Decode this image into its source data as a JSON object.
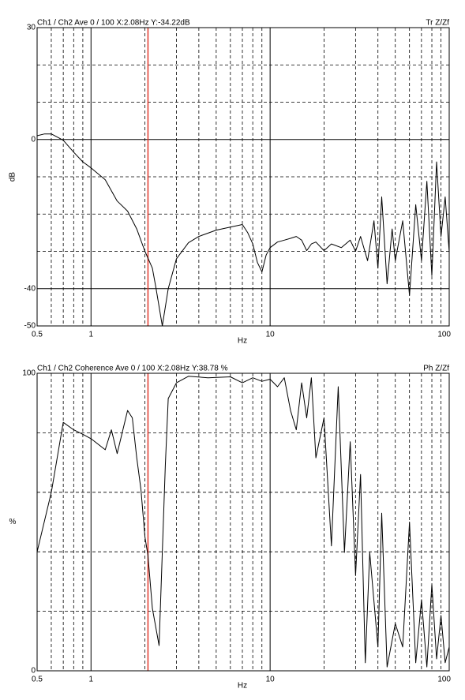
{
  "chart_data": [
    {
      "type": "line",
      "title": "Ch1 / Ch2  Ave 0 / 100  X:2.08Hz  Y:-34.22dB",
      "trace_label": "Tr Z/Zf",
      "x_label": "Hz",
      "y_label": "dB",
      "x_log": true,
      "xlim": [
        0.5,
        100
      ],
      "xticks": [
        0.5,
        1,
        10,
        100
      ],
      "minor_xticks": [
        0.6,
        0.7,
        0.8,
        0.9,
        2,
        3,
        4,
        5,
        6,
        7,
        8,
        9,
        20,
        30,
        40,
        50,
        60,
        70,
        80,
        90
      ],
      "ylim": [
        -50,
        30
      ],
      "yticks": [
        -50,
        -40,
        0,
        30
      ],
      "minor_yticks": [
        -30,
        -20,
        -10,
        10,
        20
      ],
      "cursor_x": 2.08,
      "cursor_color": "#e0392b",
      "grid": true,
      "x": [
        0.5,
        0.55,
        0.6,
        0.7,
        0.8,
        0.9,
        1.0,
        1.2,
        1.4,
        1.6,
        1.8,
        2.0,
        2.2,
        2.3,
        2.5,
        2.7,
        3.0,
        3.5,
        4,
        5,
        6,
        7,
        7.5,
        8,
        8.5,
        9,
        9.5,
        10,
        11,
        12,
        13,
        14,
        15,
        16,
        17,
        18,
        20,
        22,
        25,
        28,
        30,
        32,
        35,
        38,
        40,
        42,
        45,
        48,
        50,
        55,
        60,
        65,
        70,
        75,
        80,
        85,
        90,
        95,
        100
      ],
      "series": [
        {
          "name": "Tr Z/Zf",
          "color": "#000000",
          "values": [
            1,
            1.5,
            1.5,
            -0.2,
            -3.4,
            -6,
            -7.6,
            -10.8,
            -16.5,
            -19.2,
            -24,
            -30,
            -34.5,
            -39.5,
            -50,
            -40,
            -32,
            -27.7,
            -26,
            -24.3,
            -23.5,
            -22.8,
            -25,
            -28,
            -33,
            -35.5,
            -31,
            -29,
            -27.5,
            -27,
            -26.5,
            -26,
            -27,
            -29.8,
            -28,
            -27.5,
            -29.8,
            -28,
            -29,
            -27,
            -30,
            -26,
            -32.5,
            -21.8,
            -34.5,
            -15.4,
            -38.7,
            -24,
            -32.5,
            -21.8,
            -41.8,
            -17.5,
            -32.5,
            -11.2,
            -36.5,
            -6,
            -26,
            -15.4,
            -30.2
          ]
        }
      ]
    },
    {
      "type": "line",
      "title": "Ch1 / Ch2  Coherence Ave 0 / 100  X:2.08Hz  Y:38.78 %",
      "trace_label": "Ph Z/Zf",
      "x_label": "Hz",
      "y_label": "%",
      "x_log": true,
      "xlim": [
        0.5,
        100
      ],
      "xticks": [
        0.5,
        1,
        10,
        100
      ],
      "minor_xticks": [
        0.6,
        0.7,
        0.8,
        0.9,
        2,
        3,
        4,
        5,
        6,
        7,
        8,
        9,
        20,
        30,
        40,
        50,
        60,
        70,
        80,
        90
      ],
      "ylim": [
        0,
        100
      ],
      "yticks": [
        0,
        100
      ],
      "minor_yticks": [
        20,
        40,
        60,
        80
      ],
      "cursor_x": 2.08,
      "cursor_color": "#e0392b",
      "grid": true,
      "x": [
        0.5,
        0.6,
        0.7,
        0.8,
        0.9,
        1.0,
        1.2,
        1.3,
        1.4,
        1.6,
        1.7,
        1.8,
        1.9,
        2.0,
        2.08,
        2.2,
        2.4,
        2.6,
        2.7,
        3,
        3.5,
        4.5,
        6,
        7,
        8,
        9,
        10,
        11,
        12,
        13,
        14,
        15,
        16,
        17,
        18,
        20,
        22,
        24,
        26,
        28,
        30,
        32,
        34,
        36,
        40,
        42,
        45,
        50,
        55,
        60,
        65,
        70,
        75,
        80,
        85,
        90,
        95,
        100
      ],
      "series": [
        {
          "name": "Ph Z/Zf",
          "color": "#000000",
          "values": [
            40,
            60,
            83.5,
            81,
            79.5,
            78,
            74.3,
            81,
            73,
            87.5,
            85,
            71.6,
            61,
            45,
            38.78,
            21,
            8.5,
            69,
            91.5,
            96.8,
            99,
            98.5,
            98.8,
            96.8,
            98.5,
            97.3,
            98,
            95.5,
            98.5,
            87.5,
            81,
            96.8,
            85,
            98.5,
            71.6,
            85,
            42,
            95.5,
            39.8,
            77,
            32,
            66,
            2.7,
            39.8,
            8,
            53,
            1.3,
            15.9,
            8,
            50,
            2.7,
            23.9,
            1.3,
            29,
            4,
            18.6,
            2.7,
            8
          ]
        }
      ]
    }
  ]
}
